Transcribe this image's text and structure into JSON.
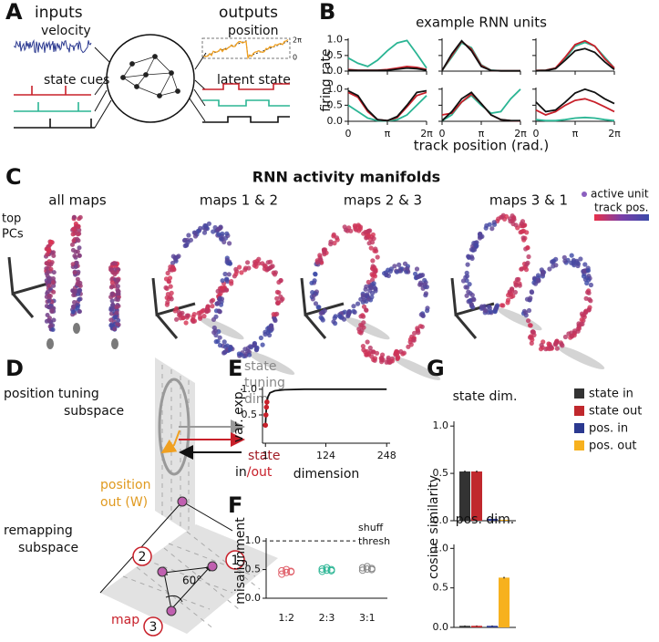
{
  "panel_labels": [
    "A",
    "B",
    "C",
    "D",
    "E",
    "F",
    "G"
  ],
  "panel_a": {
    "inputs": "inputs",
    "velocity": "velocity",
    "state_cues": "state cues",
    "outputs": "outputs",
    "position": "position",
    "latent_state": "latent state",
    "pos_top": "2π",
    "pos_bottom": "0"
  },
  "panel_b": {
    "title": "example RNN units",
    "ylabel": "firing rate",
    "xlabel": "track position (rad.)"
  },
  "panel_c": {
    "title": "RNN activity manifolds",
    "subtitles": [
      "all maps",
      "maps 1 & 2",
      "maps 2 & 3",
      "maps 3 & 1"
    ],
    "axes_label": [
      "top",
      "PCs"
    ],
    "legend": [
      "active unit",
      "track pos."
    ]
  },
  "panel_d": {
    "position_tuning": [
      "position tuning",
      "subspace"
    ],
    "state_tuning": [
      "state",
      "tuning",
      "dim"
    ],
    "state": "state",
    "in": "in",
    "out": "/out",
    "position_out": [
      "position",
      "out (W)"
    ],
    "remapping": [
      "remapping",
      "subspace"
    ],
    "angle": "60°",
    "map": "map",
    "nodes": [
      "1",
      "2",
      "3"
    ]
  },
  "chart_data": [
    {
      "type": "line",
      "x": [
        0,
        0.785,
        1.571,
        2.356,
        3.142,
        3.927,
        4.712,
        5.498,
        6.283
      ],
      "xlim": [
        0,
        6.28319
      ],
      "xticks": [
        0,
        3.14159,
        6.28319
      ],
      "ylim": [
        0,
        1.05
      ],
      "yticks": [
        {
          "value": 0,
          "label": "0.0"
        },
        0.5,
        {
          "value": 1,
          "label": "1.0"
        }
      ],
      "series": [
        {
          "color": "#2bb594",
          "values": [
            0.42,
            0.25,
            0.15,
            0.35,
            0.65,
            0.9,
            0.98,
            0.55,
            0.1
          ]
        },
        {
          "color": "#c8202a",
          "values": [
            0.05,
            0.03,
            0.03,
            0.03,
            0.05,
            0.1,
            0.15,
            0.12,
            0.05
          ]
        },
        {
          "color": "#111111",
          "values": [
            0.03,
            0.02,
            0.02,
            0.02,
            0.03,
            0.06,
            0.1,
            0.08,
            0.03
          ]
        }
      ]
    },
    {
      "type": "line",
      "x": [
        0,
        0.785,
        1.571,
        2.356,
        3.142,
        3.927,
        4.712,
        5.498,
        6.283
      ],
      "xlim": [
        0,
        6.28319
      ],
      "xticks": [
        0,
        3.14159,
        6.28319
      ],
      "ylim": [
        0,
        1.05
      ],
      "yticks": [
        0,
        0.5,
        1
      ],
      "series": [
        {
          "color": "#2bb594",
          "values": [
            0.02,
            0.45,
            0.9,
            0.75,
            0.2,
            0.03,
            0.01,
            0.01,
            0.01
          ]
        },
        {
          "color": "#c8202a",
          "values": [
            0.02,
            0.5,
            0.95,
            0.7,
            0.18,
            0.02,
            0.01,
            0.01,
            0.01
          ]
        },
        {
          "color": "#111111",
          "values": [
            0.02,
            0.55,
            0.97,
            0.65,
            0.15,
            0.02,
            0.01,
            0.01,
            0.01
          ]
        }
      ]
    },
    {
      "type": "line",
      "x": [
        0,
        0.785,
        1.571,
        2.356,
        3.142,
        3.927,
        4.712,
        5.498,
        6.283
      ],
      "xlim": [
        0,
        6.28319
      ],
      "xticks": [
        0,
        3.14159,
        6.28319
      ],
      "ylim": [
        0,
        1.05
      ],
      "yticks": [
        0,
        0.5,
        1
      ],
      "series": [
        {
          "color": "#2bb594",
          "values": [
            0.02,
            0.03,
            0.1,
            0.4,
            0.8,
            0.92,
            0.8,
            0.45,
            0.1
          ]
        },
        {
          "color": "#c8202a",
          "values": [
            0.02,
            0.03,
            0.1,
            0.45,
            0.85,
            0.97,
            0.8,
            0.4,
            0.1
          ]
        },
        {
          "color": "#111111",
          "values": [
            0.01,
            0.02,
            0.08,
            0.35,
            0.65,
            0.72,
            0.6,
            0.3,
            0.05
          ]
        }
      ]
    },
    {
      "type": "line",
      "x": [
        0,
        0.785,
        1.571,
        2.356,
        3.142,
        3.927,
        4.712,
        5.498,
        6.283
      ],
      "xlim": [
        0,
        6.28319
      ],
      "xticks": [
        0,
        {
          "value": 3.14159,
          "label": "π"
        },
        {
          "value": 6.28319,
          "label": "2π"
        }
      ],
      "ylim": [
        0,
        1.05
      ],
      "yticks": [
        {
          "value": 0,
          "label": "0.0"
        },
        0.5,
        {
          "value": 1,
          "label": "1.0"
        }
      ],
      "series": [
        {
          "color": "#2bb594",
          "values": [
            0.5,
            0.3,
            0.1,
            0.02,
            0.01,
            0.05,
            0.2,
            0.5,
            0.8
          ]
        },
        {
          "color": "#c8202a",
          "values": [
            0.9,
            0.75,
            0.3,
            0.05,
            0.02,
            0.12,
            0.45,
            0.8,
            0.9
          ]
        },
        {
          "color": "#111111",
          "values": [
            0.95,
            0.8,
            0.35,
            0.05,
            0.02,
            0.15,
            0.5,
            0.9,
            0.95
          ]
        }
      ]
    },
    {
      "type": "line",
      "x": [
        0,
        0.785,
        1.571,
        2.356,
        3.142,
        3.927,
        4.712,
        5.498,
        6.283
      ],
      "xlim": [
        0,
        6.28319
      ],
      "xticks": [
        0,
        {
          "value": 3.14159,
          "label": "π"
        },
        {
          "value": 6.28319,
          "label": "2π"
        }
      ],
      "ylim": [
        0,
        1.05
      ],
      "yticks": [
        0,
        0.5,
        1
      ],
      "series": [
        {
          "color": "#2bb594",
          "values": [
            0.02,
            0.2,
            0.6,
            0.8,
            0.5,
            0.25,
            0.3,
            0.7,
            1.0
          ]
        },
        {
          "color": "#c8202a",
          "values": [
            0.2,
            0.25,
            0.6,
            0.85,
            0.55,
            0.2,
            0.05,
            0.02,
            0.01
          ]
        },
        {
          "color": "#111111",
          "values": [
            0.02,
            0.3,
            0.7,
            0.9,
            0.55,
            0.2,
            0.05,
            0.02,
            0.02
          ]
        }
      ]
    },
    {
      "type": "line",
      "x": [
        0,
        0.785,
        1.571,
        2.356,
        3.142,
        3.927,
        4.712,
        5.498,
        6.283
      ],
      "xlim": [
        0,
        6.28319
      ],
      "xticks": [
        0,
        {
          "value": 3.14159,
          "label": "π"
        },
        {
          "value": 6.28319,
          "label": "2π"
        }
      ],
      "ylim": [
        0,
        1.05
      ],
      "yticks": [
        0,
        0.5,
        1
      ],
      "series": [
        {
          "color": "#2bb594",
          "values": [
            0.05,
            0.02,
            0.02,
            0.05,
            0.1,
            0.12,
            0.1,
            0.05,
            0.02
          ]
        },
        {
          "color": "#c8202a",
          "values": [
            0.35,
            0.2,
            0.3,
            0.5,
            0.65,
            0.7,
            0.6,
            0.45,
            0.3
          ]
        },
        {
          "color": "#111111",
          "values": [
            0.6,
            0.3,
            0.35,
            0.6,
            0.88,
            1.0,
            0.9,
            0.7,
            0.55
          ]
        }
      ]
    },
    {
      "type": "line",
      "xlabel": "dimension",
      "ylabel": "var. exp.",
      "xlim": [
        -5,
        255
      ],
      "xticks": [
        1,
        124,
        248
      ],
      "ylim": [
        -0.05,
        1.05
      ],
      "yticks": [
        0.5,
        {
          "value": 1,
          "label": "1.0"
        }
      ],
      "series": [
        {
          "color": "#111111",
          "x": [
            1,
            2,
            3,
            4,
            6,
            10,
            20,
            40,
            80,
            124,
            248
          ],
          "values": [
            0.3,
            0.5,
            0.65,
            0.75,
            0.85,
            0.93,
            0.97,
            0.99,
            1,
            1,
            1
          ]
        },
        {
          "color": "#c8202a",
          "style": "markers",
          "x": [
            1,
            2,
            3,
            4
          ],
          "values": [
            0.3,
            0.5,
            0.65,
            0.75
          ]
        }
      ]
    },
    {
      "type": "strip",
      "ylabel": "misalignment",
      "categories": [
        "1:2",
        "2:3",
        "3:1"
      ],
      "ylim": [
        0,
        1.05
      ],
      "yticks": [
        {
          "value": 0,
          "label": "0.0"
        },
        0.5,
        {
          "value": 1,
          "label": "1.0"
        }
      ],
      "annotation": {
        "text": [
          "shuff",
          "thresh"
        ],
        "value": 1
      },
      "series": [
        {
          "color": "#e0606a",
          "values": [
            0.42,
            0.45,
            0.47,
            0.48,
            0.5,
            0.46
          ]
        },
        {
          "color": "#2bb594",
          "values": [
            0.47,
            0.49,
            0.5,
            0.51,
            0.53,
            0.48
          ]
        },
        {
          "color": "#888888",
          "values": [
            0.49,
            0.51,
            0.52,
            0.53,
            0.55,
            0.5
          ]
        }
      ]
    },
    {
      "type": "bar",
      "title": "state dim.",
      "ylabel": "cosine similarity",
      "ylim": [
        0,
        1.05
      ],
      "yticks": [
        {
          "value": 0,
          "label": "0.0"
        },
        0.5,
        {
          "value": 1,
          "label": "1.0"
        }
      ],
      "series": [
        {
          "name": "state in",
          "color": "#333333",
          "values": [
            0.52
          ],
          "errors": [
            0.01
          ]
        },
        {
          "name": "state out",
          "color": "#c0282d",
          "values": [
            0.52
          ],
          "errors": [
            0.01
          ]
        },
        {
          "name": "pos. in",
          "color": "#2b3990",
          "values": [
            0.02
          ],
          "errors": [
            0.005
          ]
        },
        {
          "name": "pos. out",
          "color": "#f7b11e",
          "values": [
            0.01
          ],
          "errors": [
            0.005
          ]
        }
      ]
    },
    {
      "type": "bar",
      "title": "pos. dim.",
      "ylim": [
        0,
        1.05
      ],
      "yticks": [
        {
          "value": 0,
          "label": "0.0"
        },
        0.5,
        {
          "value": 1,
          "label": "1.0"
        }
      ],
      "series": [
        {
          "color": "#333333",
          "values": [
            0.02
          ],
          "errors": [
            0.005
          ]
        },
        {
          "color": "#c0282d",
          "values": [
            0.02
          ],
          "errors": [
            0.005
          ]
        },
        {
          "color": "#2b3990",
          "values": [
            0.02
          ],
          "errors": [
            0.005
          ]
        },
        {
          "color": "#f7b11e",
          "values": [
            0.63
          ],
          "errors": [
            0.01
          ]
        }
      ]
    }
  ]
}
